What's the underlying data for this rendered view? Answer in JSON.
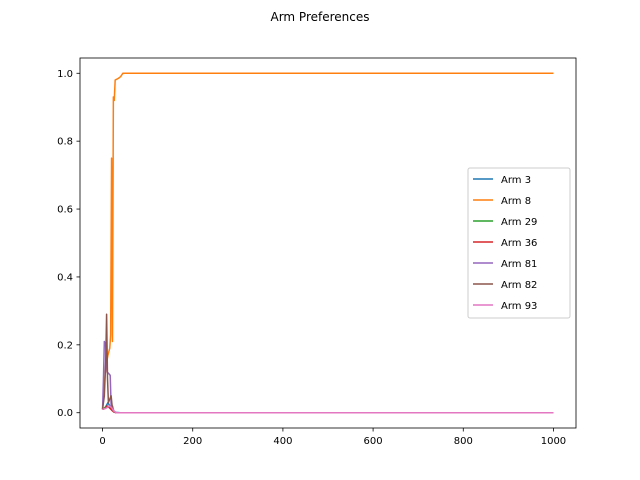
{
  "chart_data": {
    "type": "line",
    "title": "Arm Preferences",
    "xlabel": "",
    "ylabel": "",
    "xlim": [
      -50,
      1050
    ],
    "ylim": [
      -0.045,
      1.045
    ],
    "xticks": [
      0,
      200,
      400,
      600,
      800,
      1000
    ],
    "yticks": [
      0.0,
      0.2,
      0.4,
      0.6,
      0.8,
      1.0
    ],
    "xtick_labels": [
      "0",
      "200",
      "400",
      "600",
      "800",
      "1000"
    ],
    "ytick_labels": [
      "0.0",
      "0.2",
      "0.4",
      "0.6",
      "0.8",
      "1.0"
    ],
    "grid": false,
    "legend_position": "center-right",
    "series": [
      {
        "name": "Arm 3",
        "color": "#1f77b4",
        "points": [
          [
            0,
            0.01
          ],
          [
            4,
            0.012
          ],
          [
            8,
            0.02
          ],
          [
            12,
            0.03
          ],
          [
            16,
            0.02
          ],
          [
            20,
            0.01
          ],
          [
            25,
            0.004
          ],
          [
            30,
            0.001
          ],
          [
            40,
            0.0
          ],
          [
            1000,
            0.0
          ]
        ]
      },
      {
        "name": "Arm 8",
        "color": "#ff7f0e",
        "points": [
          [
            0,
            0.01
          ],
          [
            3,
            0.05
          ],
          [
            5,
            0.1
          ],
          [
            8,
            0.14
          ],
          [
            12,
            0.17
          ],
          [
            16,
            0.19
          ],
          [
            18,
            0.23
          ],
          [
            20,
            0.75
          ],
          [
            22,
            0.21
          ],
          [
            24,
            0.93
          ],
          [
            26,
            0.92
          ],
          [
            28,
            0.98
          ],
          [
            35,
            0.985
          ],
          [
            40,
            0.99
          ],
          [
            45,
            1.0
          ],
          [
            1000,
            1.0
          ]
        ]
      },
      {
        "name": "Arm 29",
        "color": "#2ca02c",
        "points": [
          [
            0,
            0.01
          ],
          [
            5,
            0.015
          ],
          [
            10,
            0.02
          ],
          [
            15,
            0.015
          ],
          [
            20,
            0.01
          ],
          [
            25,
            0.003
          ],
          [
            30,
            0.0
          ],
          [
            1000,
            0.0
          ]
        ]
      },
      {
        "name": "Arm 36",
        "color": "#d62728",
        "points": [
          [
            0,
            0.01
          ],
          [
            5,
            0.012
          ],
          [
            10,
            0.02
          ],
          [
            15,
            0.015
          ],
          [
            20,
            0.008
          ],
          [
            25,
            0.002
          ],
          [
            30,
            0.0
          ],
          [
            1000,
            0.0
          ]
        ]
      },
      {
        "name": "Arm 81",
        "color": "#9467bd",
        "points": [
          [
            0,
            0.01
          ],
          [
            2,
            0.1
          ],
          [
            4,
            0.21
          ],
          [
            7,
            0.2
          ],
          [
            10,
            0.12
          ],
          [
            14,
            0.115
          ],
          [
            17,
            0.11
          ],
          [
            19,
            0.02
          ],
          [
            22,
            0.02
          ],
          [
            25,
            0.005
          ],
          [
            30,
            0.0
          ],
          [
            1000,
            0.0
          ]
        ]
      },
      {
        "name": "Arm 82",
        "color": "#8c564b",
        "points": [
          [
            0,
            0.01
          ],
          [
            4,
            0.05
          ],
          [
            7,
            0.15
          ],
          [
            9,
            0.29
          ],
          [
            11,
            0.1
          ],
          [
            13,
            0.03
          ],
          [
            16,
            0.04
          ],
          [
            19,
            0.05
          ],
          [
            22,
            0.01
          ],
          [
            25,
            0.003
          ],
          [
            30,
            0.0
          ],
          [
            1000,
            0.0
          ]
        ]
      },
      {
        "name": "Arm 93",
        "color": "#e377c2",
        "points": [
          [
            0,
            0.01
          ],
          [
            5,
            0.012
          ],
          [
            10,
            0.015
          ],
          [
            15,
            0.02
          ],
          [
            20,
            0.015
          ],
          [
            25,
            0.005
          ],
          [
            30,
            0.0
          ],
          [
            1000,
            0.0
          ]
        ]
      }
    ]
  }
}
